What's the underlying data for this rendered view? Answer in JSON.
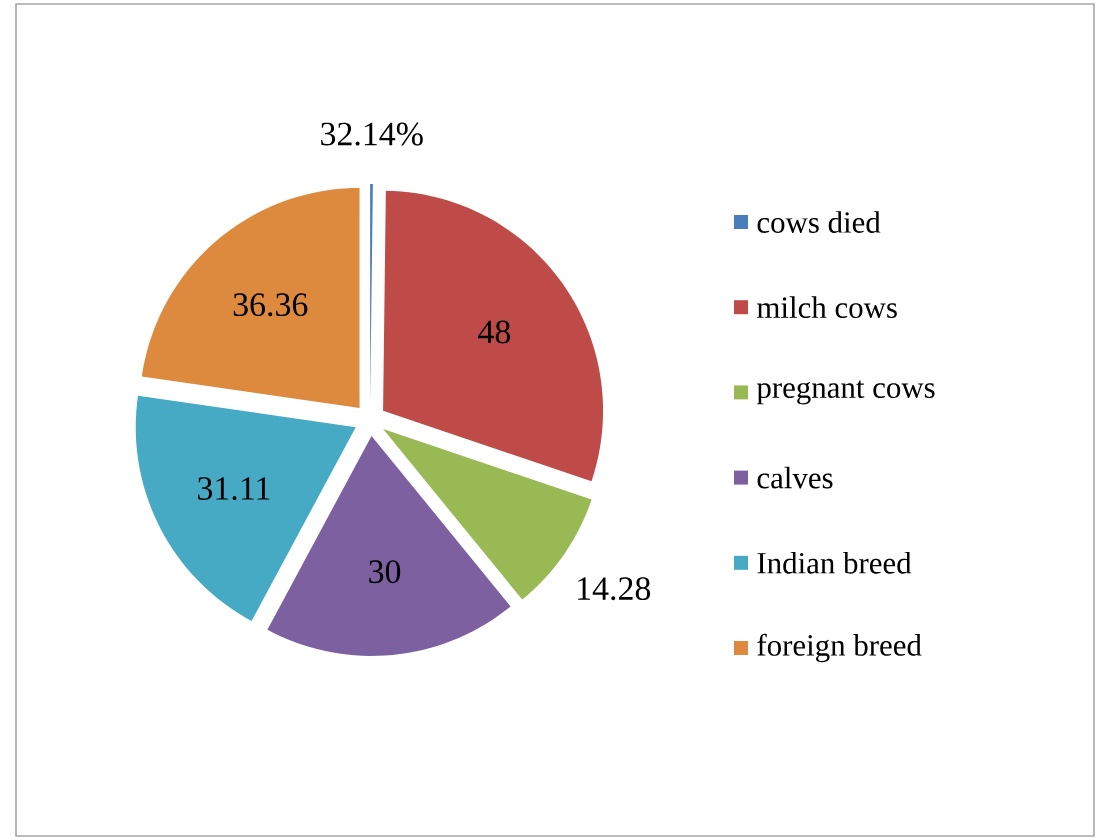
{
  "chart_data": {
    "type": "pie",
    "categories": [
      "cows died",
      "milch cows",
      "pregnant cows",
      "calves",
      "Indian breed",
      "foreign breed"
    ],
    "values": [
      0.3214,
      48,
      14.28,
      30,
      31.11,
      36.36
    ],
    "value_labels": [
      "32.14%",
      "48",
      "14.28",
      "30",
      "31.11",
      "36.36"
    ],
    "colors": [
      "#4a7ebb",
      "#be4b48",
      "#98b954",
      "#7d60a0",
      "#46aac5",
      "#dd8a3f"
    ],
    "legend": "right"
  }
}
